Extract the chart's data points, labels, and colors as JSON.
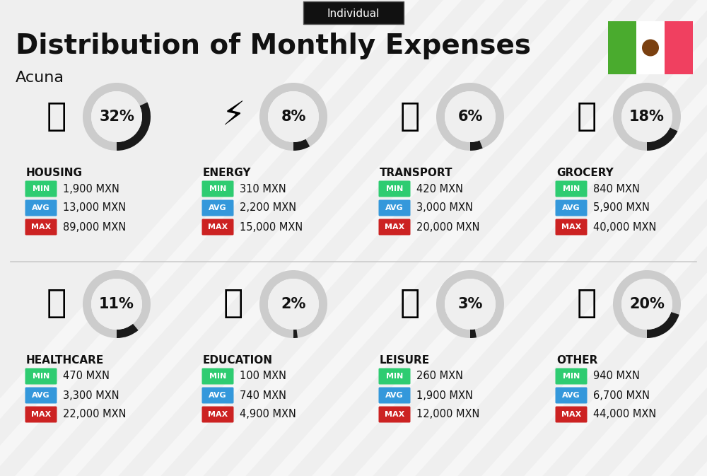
{
  "title": "Distribution of Monthly Expenses",
  "subtitle": "Individual",
  "city": "Acuna",
  "bg_color": "#efefef",
  "categories": [
    {
      "name": "HOUSING",
      "pct": 32,
      "min": "1,900 MXN",
      "avg": "13,000 MXN",
      "max": "89,000 MXN",
      "row": 0,
      "col": 0
    },
    {
      "name": "ENERGY",
      "pct": 8,
      "min": "310 MXN",
      "avg": "2,200 MXN",
      "max": "15,000 MXN",
      "row": 0,
      "col": 1
    },
    {
      "name": "TRANSPORT",
      "pct": 6,
      "min": "420 MXN",
      "avg": "3,000 MXN",
      "max": "20,000 MXN",
      "row": 0,
      "col": 2
    },
    {
      "name": "GROCERY",
      "pct": 18,
      "min": "840 MXN",
      "avg": "5,900 MXN",
      "max": "40,000 MXN",
      "row": 0,
      "col": 3
    },
    {
      "name": "HEALTHCARE",
      "pct": 11,
      "min": "470 MXN",
      "avg": "3,300 MXN",
      "max": "22,000 MXN",
      "row": 1,
      "col": 0
    },
    {
      "name": "EDUCATION",
      "pct": 2,
      "min": "100 MXN",
      "avg": "740 MXN",
      "max": "4,900 MXN",
      "row": 1,
      "col": 1
    },
    {
      "name": "LEISURE",
      "pct": 3,
      "min": "260 MXN",
      "avg": "1,900 MXN",
      "max": "12,000 MXN",
      "row": 1,
      "col": 2
    },
    {
      "name": "OTHER",
      "pct": 20,
      "min": "940 MXN",
      "avg": "6,700 MXN",
      "max": "44,000 MXN",
      "row": 1,
      "col": 3
    }
  ],
  "min_color": "#2ecc71",
  "avg_color": "#3498db",
  "max_color": "#cc2222",
  "ring_bg_color": "#cccccc",
  "ring_fg_color": "#1a1a1a",
  "text_color": "#111111",
  "flag_green": "#4aab2e",
  "flag_white": "#ffffff",
  "flag_red": "#f04060",
  "stripe_color": "#ffffff",
  "divider_color": "#cccccc"
}
